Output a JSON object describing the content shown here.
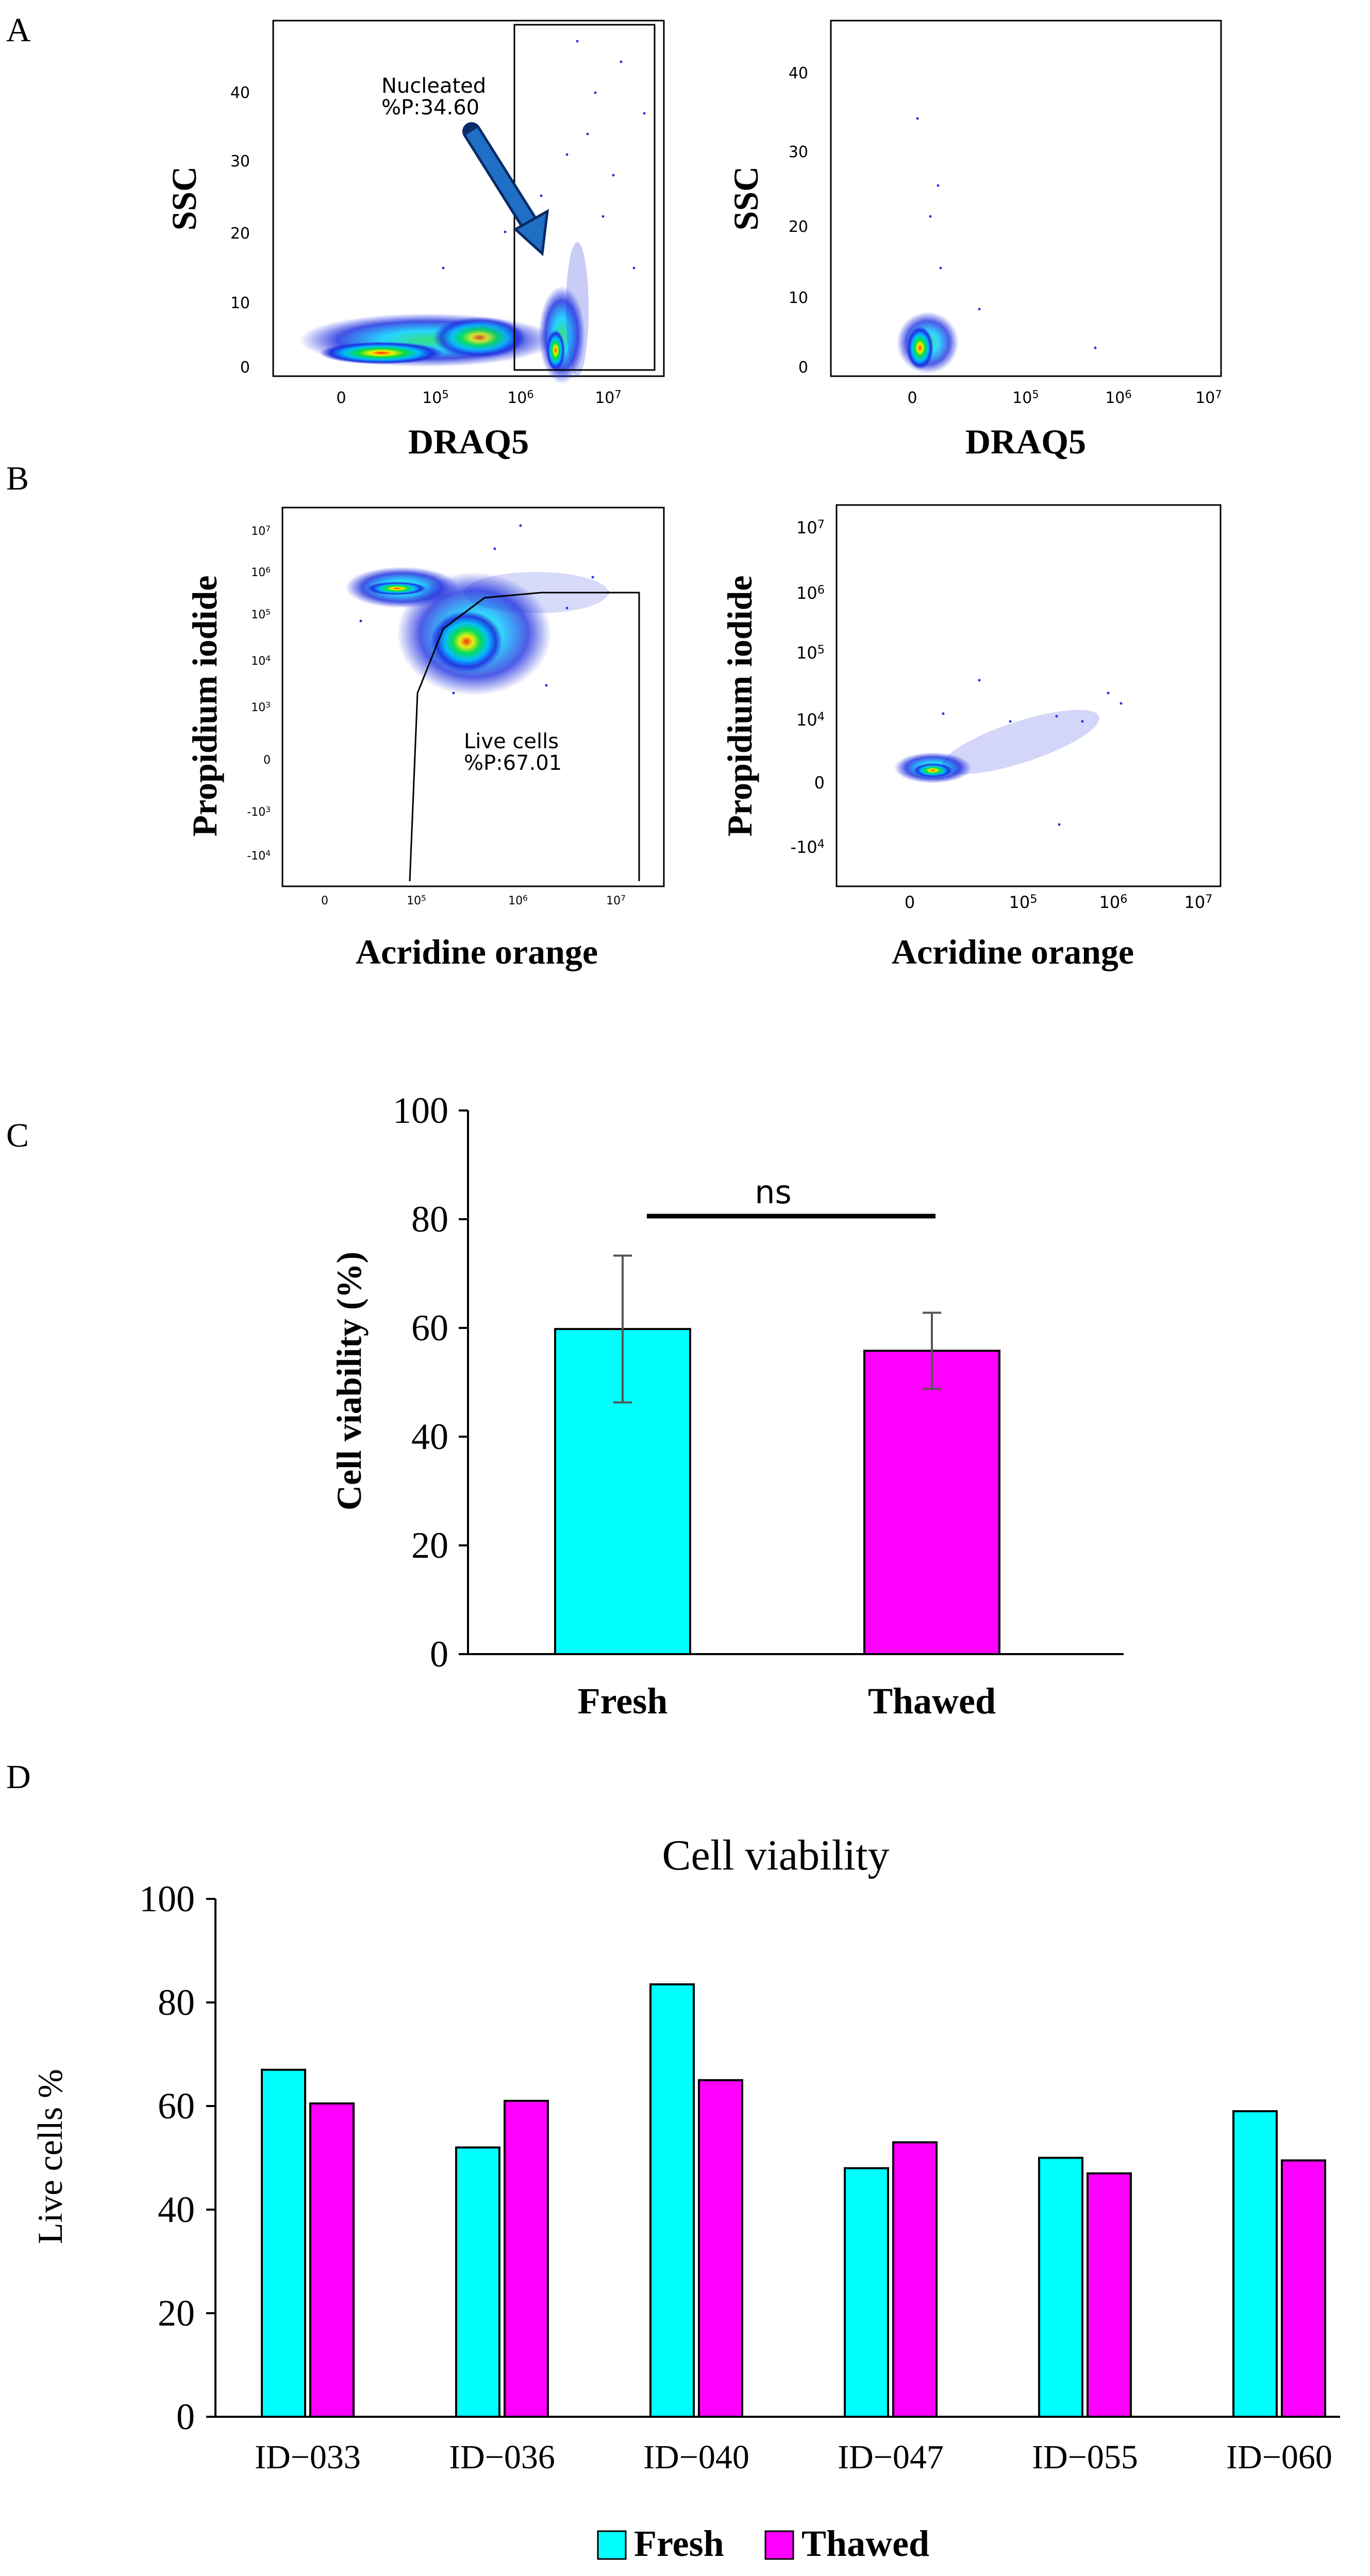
{
  "panel_labels": {
    "a": "A",
    "b": "B",
    "c": "C",
    "d": "D"
  },
  "colors": {
    "fresh": "#00ffff",
    "thawed": "#ff00ff",
    "arrow": "#1f6fc4",
    "outline": "#000000"
  },
  "chart_data": [
    {
      "id": "A-left",
      "type": "scatter",
      "xlabel": "DRAQ5",
      "ylabel": "SSC",
      "x_ticks": [
        "0",
        "10^5",
        "10^6",
        "10^7"
      ],
      "y_ticks": [
        "0",
        "10",
        "20",
        "30",
        "40"
      ],
      "gate_label_line1": "Nucleated",
      "gate_label_line2": "%P:34.60",
      "gate_percent": 34.6
    },
    {
      "id": "A-right",
      "type": "scatter",
      "xlabel": "DRAQ5",
      "ylabel": "SSC",
      "x_ticks": [
        "0",
        "10^5",
        "10^6",
        "10^7"
      ],
      "y_ticks": [
        "0",
        "10",
        "20",
        "30",
        "40"
      ]
    },
    {
      "id": "B-left",
      "type": "scatter",
      "xlabel": "Acridine orange",
      "ylabel": "Propidium iodide",
      "x_ticks": [
        "0",
        "10^5",
        "10^6",
        "10^7"
      ],
      "y_ticks": [
        "-10^4",
        "-10^3",
        "0",
        "10^3",
        "10^4",
        "10^5",
        "10^6",
        "10^7"
      ],
      "gate_label_line1": "Live cells",
      "gate_label_line2": "%P:67.01",
      "gate_percent": 67.01
    },
    {
      "id": "B-right",
      "type": "scatter",
      "xlabel": "Acridine orange",
      "ylabel": "Propidium iodide",
      "x_ticks": [
        "0",
        "10^5",
        "10^6",
        "10^7"
      ],
      "y_ticks": [
        "-10^4",
        "0",
        "10^4",
        "10^5",
        "10^6",
        "10^7"
      ]
    },
    {
      "id": "C",
      "type": "bar",
      "categories": [
        "Fresh",
        "Thawed"
      ],
      "values": [
        59.8,
        55.8
      ],
      "errors": [
        13.5,
        7.0
      ],
      "ylabel": "Cell viability (%)",
      "ylim": [
        0,
        100
      ],
      "y_ticks": [
        "0",
        "20",
        "40",
        "60",
        "80",
        "100"
      ],
      "significance": "ns"
    },
    {
      "id": "D",
      "type": "bar",
      "title": "Cell viability",
      "ylabel": "Live cells %",
      "ylim": [
        0,
        100
      ],
      "y_ticks": [
        "0",
        "20",
        "40",
        "60",
        "80",
        "100"
      ],
      "categories": [
        "ID−033",
        "ID−036",
        "ID−040",
        "ID−047",
        "ID−055",
        "ID−060"
      ],
      "series": [
        {
          "name": "Fresh",
          "values": [
            67,
            52,
            83.5,
            48,
            50,
            59
          ]
        },
        {
          "name": "Thawed",
          "values": [
            60.5,
            61,
            65,
            53,
            47,
            49.5
          ]
        }
      ],
      "legend": "bottom-center"
    }
  ]
}
